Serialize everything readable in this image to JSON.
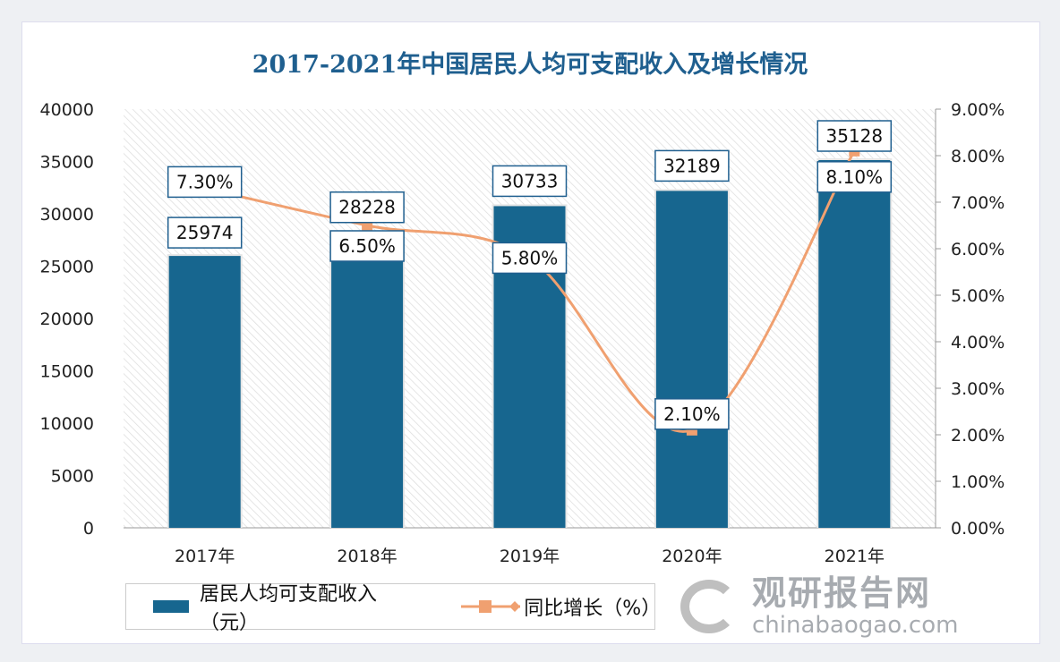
{
  "chart_data": {
    "type": "bar+line",
    "title": "2017-2021年中国居民人均可支配收入及增长情况",
    "categories": [
      "2017年",
      "2018年",
      "2019年",
      "2020年",
      "2021年"
    ],
    "series": [
      {
        "name": "居民人均可支配收入（元）",
        "type": "bar",
        "axis": "left",
        "color": "#17668f",
        "values": [
          25974,
          28228,
          30733,
          32189,
          35128
        ],
        "labels": [
          "25974",
          "28228",
          "30733",
          "32189",
          "35128"
        ]
      },
      {
        "name": "同比增长（%）",
        "type": "line",
        "axis": "right",
        "color": "#f0a070",
        "values": [
          7.3,
          6.5,
          5.8,
          2.1,
          8.1
        ],
        "labels": [
          "7.30%",
          "6.50%",
          "5.80%",
          "2.10%",
          "8.10%"
        ]
      }
    ],
    "left_axis": {
      "ylim": [
        0,
        40000
      ],
      "ticks": [
        "0",
        "5000",
        "10000",
        "15000",
        "20000",
        "25000",
        "30000",
        "35000",
        "40000"
      ]
    },
    "right_axis": {
      "ylim": [
        0,
        9
      ],
      "ticks": [
        "0.00%",
        "1.00%",
        "2.00%",
        "3.00%",
        "4.00%",
        "5.00%",
        "6.00%",
        "7.00%",
        "8.00%",
        "9.00%"
      ]
    },
    "legend": "bottom",
    "grid": false
  },
  "watermark": {
    "cn": "观研报告网",
    "en": "chinabaogao.com"
  }
}
